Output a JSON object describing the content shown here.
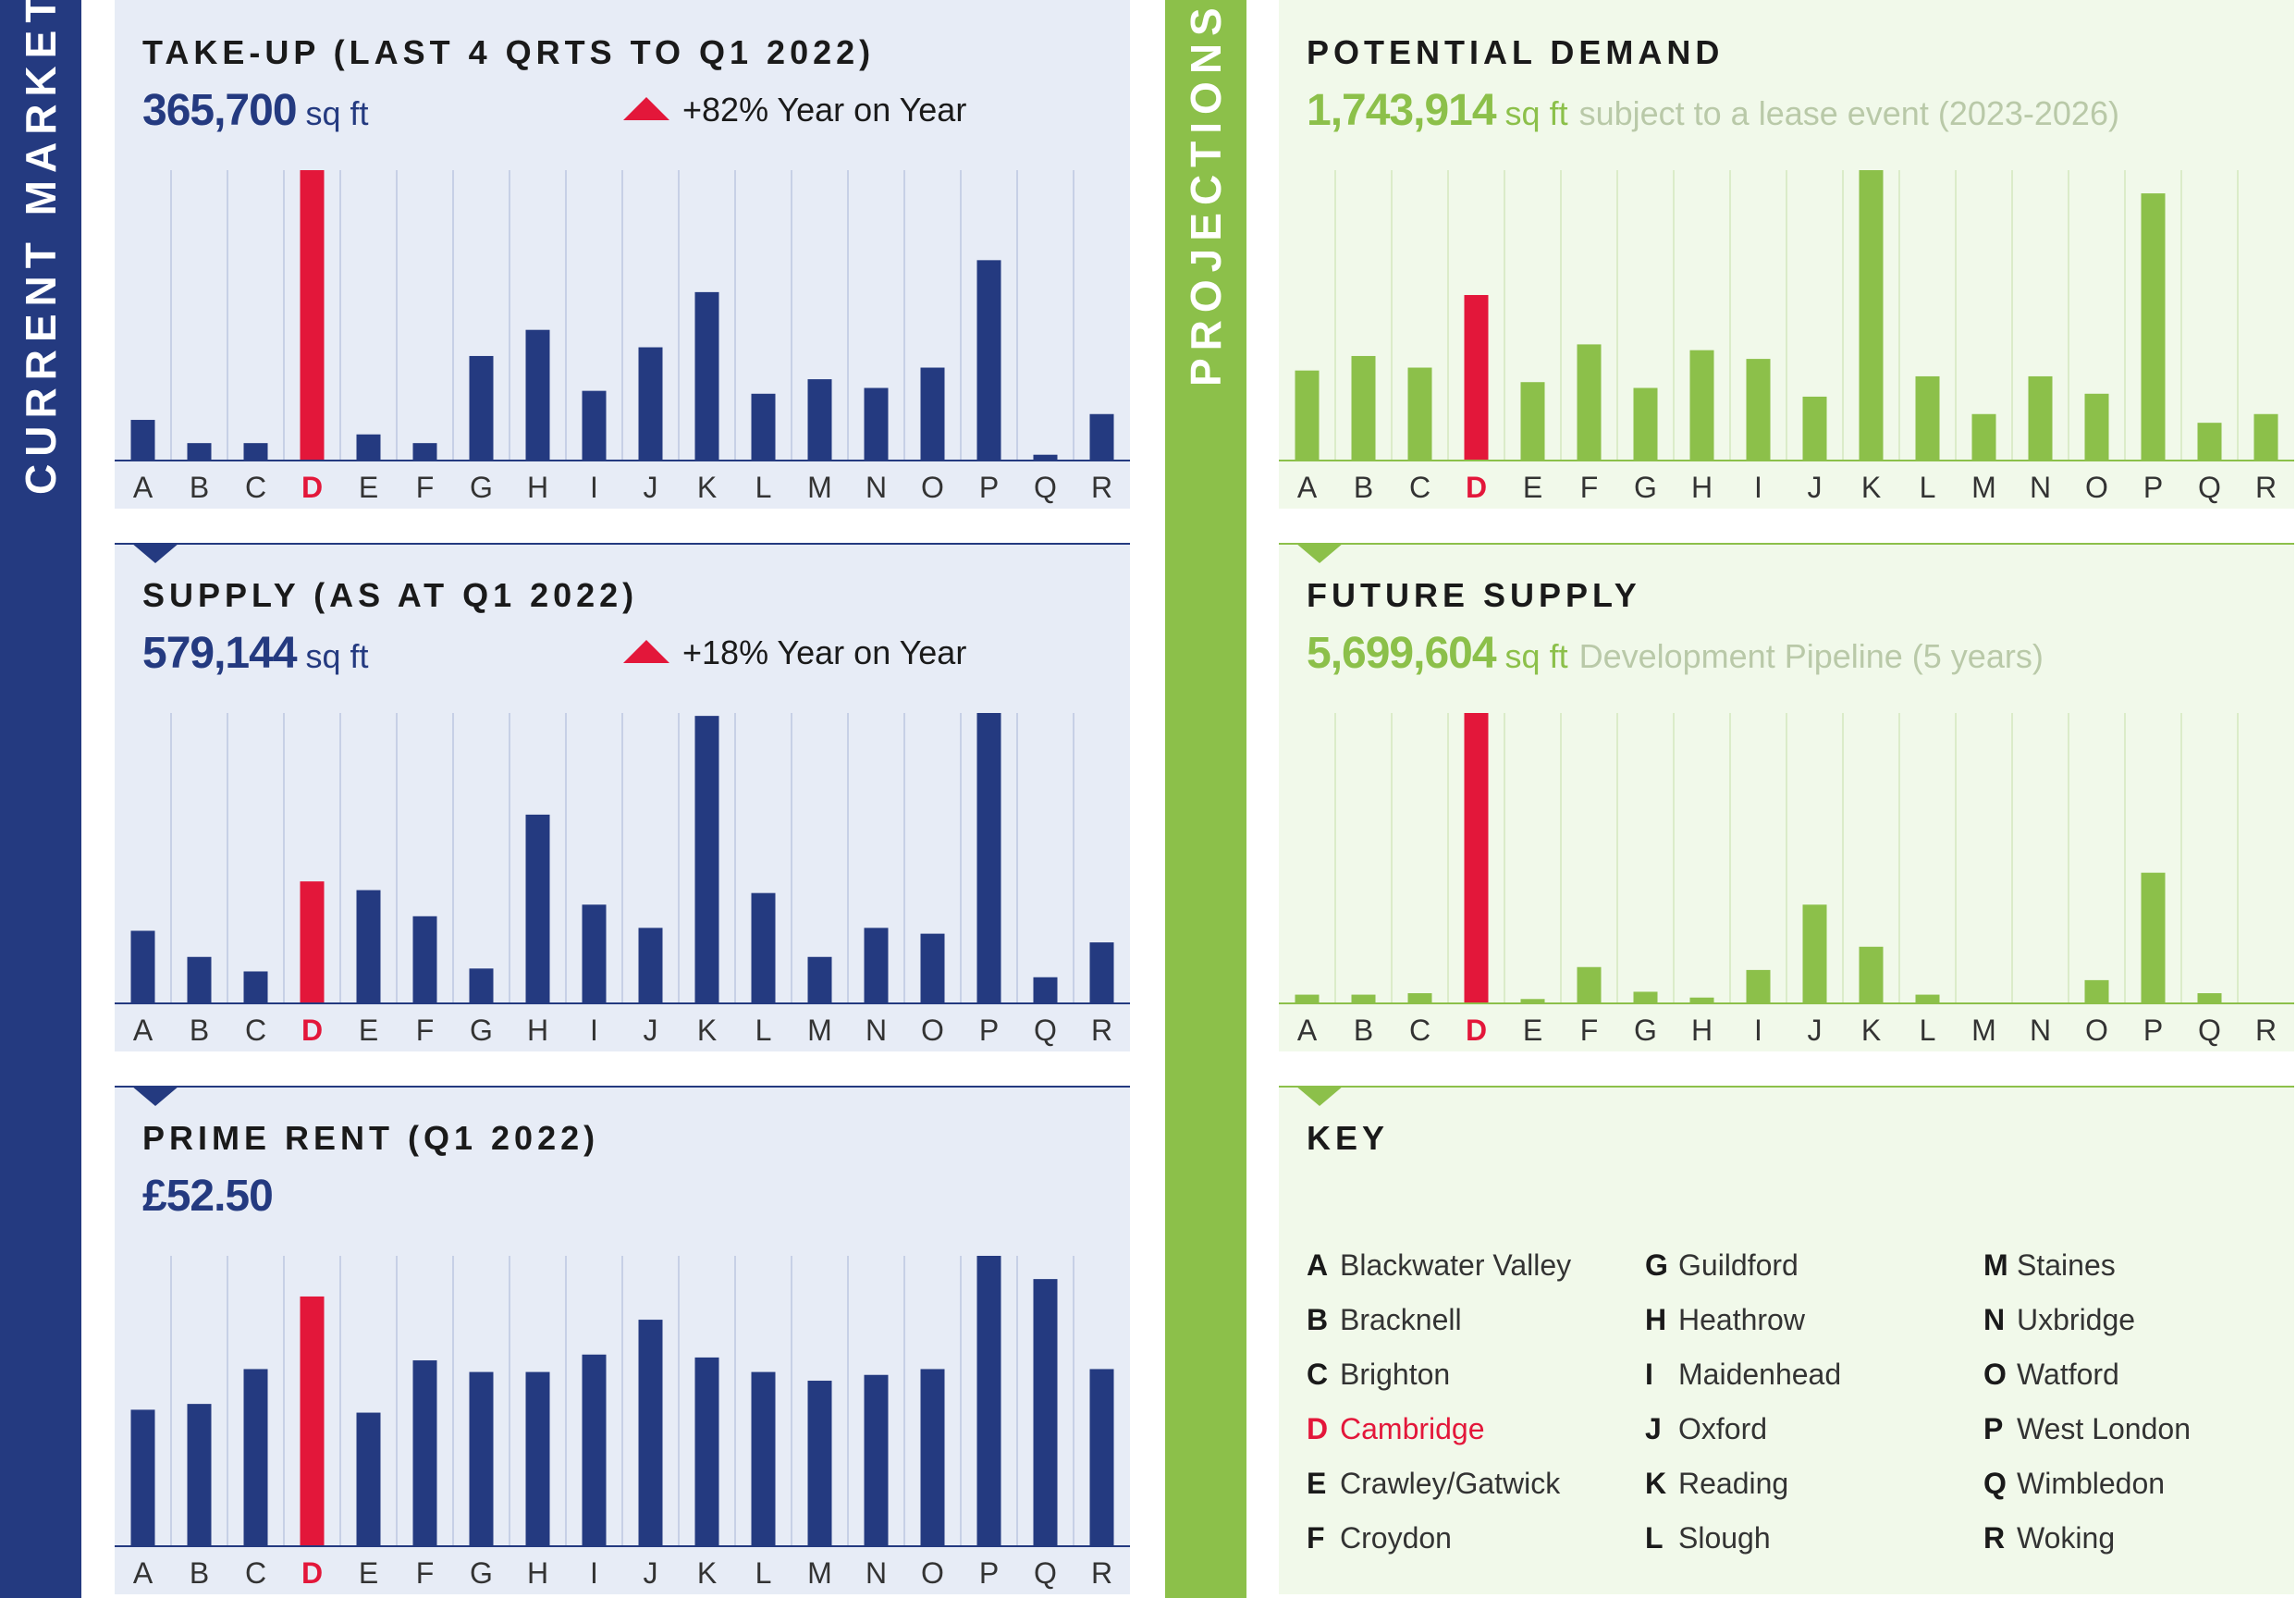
{
  "sidebar": {
    "left_label": "CURRENT MARKET",
    "right_label": "PROJECTIONS"
  },
  "colors": {
    "navy": "#243a80",
    "green": "#8cc04a",
    "highlight": "#e3173a"
  },
  "highlight_category": "D",
  "chart_data": [
    {
      "type": "bar",
      "title": "TAKE-UP (LAST 4 QRTS TO Q1 2022)",
      "headline_value": "365,700",
      "unit": "sq ft",
      "change": "+82% Year on Year",
      "categories": [
        "A",
        "B",
        "C",
        "D",
        "E",
        "F",
        "G",
        "H",
        "I",
        "J",
        "K",
        "L",
        "M",
        "N",
        "O",
        "P",
        "Q",
        "R"
      ],
      "values": [
        14,
        6,
        6,
        100,
        9,
        6,
        36,
        45,
        24,
        39,
        58,
        23,
        28,
        25,
        32,
        69,
        2,
        16
      ],
      "ylim": [
        0,
        100
      ]
    },
    {
      "type": "bar",
      "title": "SUPPLY (AS AT Q1 2022)",
      "headline_value": "579,144",
      "unit": "sq ft",
      "change": "+18% Year on Year",
      "categories": [
        "A",
        "B",
        "C",
        "D",
        "E",
        "F",
        "G",
        "H",
        "I",
        "J",
        "K",
        "L",
        "M",
        "N",
        "O",
        "P",
        "Q",
        "R"
      ],
      "values": [
        25,
        16,
        11,
        42,
        39,
        30,
        12,
        65,
        34,
        26,
        99,
        38,
        16,
        26,
        24,
        100,
        9,
        21
      ],
      "ylim": [
        0,
        100
      ]
    },
    {
      "type": "bar",
      "title": "PRIME RENT (Q1 2022)",
      "headline_value": "£52.50",
      "categories": [
        "A",
        "B",
        "C",
        "D",
        "E",
        "F",
        "G",
        "H",
        "I",
        "J",
        "K",
        "L",
        "M",
        "N",
        "O",
        "P",
        "Q",
        "R"
      ],
      "values": [
        47,
        49,
        61,
        86,
        46,
        64,
        60,
        60,
        66,
        78,
        65,
        60,
        57,
        59,
        61,
        100,
        92,
        61
      ],
      "ylim": [
        0,
        100
      ]
    },
    {
      "type": "bar",
      "title": "POTENTIAL DEMAND",
      "headline_value": "1,743,914",
      "unit": "sq ft",
      "description": "subject to a lease event (2023-2026)",
      "categories": [
        "A",
        "B",
        "C",
        "D",
        "E",
        "F",
        "G",
        "H",
        "I",
        "J",
        "K",
        "L",
        "M",
        "N",
        "O",
        "P",
        "Q",
        "R"
      ],
      "values": [
        31,
        36,
        32,
        57,
        27,
        40,
        25,
        38,
        35,
        22,
        100,
        29,
        16,
        29,
        23,
        92,
        13,
        16
      ],
      "ylim": [
        0,
        100
      ]
    },
    {
      "type": "bar",
      "title": "FUTURE SUPPLY",
      "headline_value": "5,699,604",
      "unit": "sq ft",
      "description": "Development Pipeline (5 years)",
      "categories": [
        "A",
        "B",
        "C",
        "D",
        "E",
        "F",
        "G",
        "H",
        "I",
        "J",
        "K",
        "L",
        "M",
        "N",
        "O",
        "P",
        "Q",
        "R"
      ],
      "values": [
        3,
        3,
        3.5,
        100,
        1.5,
        12.5,
        4,
        2,
        11.5,
        34,
        19.5,
        3,
        0,
        0,
        8,
        45,
        3.5,
        0
      ],
      "ylim": [
        0,
        100
      ]
    }
  ],
  "key": {
    "title": "KEY",
    "items": [
      {
        "letter": "A",
        "name": "Blackwater Valley"
      },
      {
        "letter": "B",
        "name": "Bracknell"
      },
      {
        "letter": "C",
        "name": "Brighton"
      },
      {
        "letter": "D",
        "name": "Cambridge"
      },
      {
        "letter": "E",
        "name": "Crawley/Gatwick"
      },
      {
        "letter": "F",
        "name": "Croydon"
      },
      {
        "letter": "G",
        "name": "Guildford"
      },
      {
        "letter": "H",
        "name": "Heathrow"
      },
      {
        "letter": "I",
        "name": "Maidenhead"
      },
      {
        "letter": "J",
        "name": "Oxford"
      },
      {
        "letter": "K",
        "name": "Reading"
      },
      {
        "letter": "L",
        "name": "Slough"
      },
      {
        "letter": "M",
        "name": "Staines"
      },
      {
        "letter": "N",
        "name": "Uxbridge"
      },
      {
        "letter": "O",
        "name": "Watford"
      },
      {
        "letter": "P",
        "name": "West London"
      },
      {
        "letter": "Q",
        "name": "Wimbledon"
      },
      {
        "letter": "R",
        "name": "Woking"
      }
    ]
  }
}
